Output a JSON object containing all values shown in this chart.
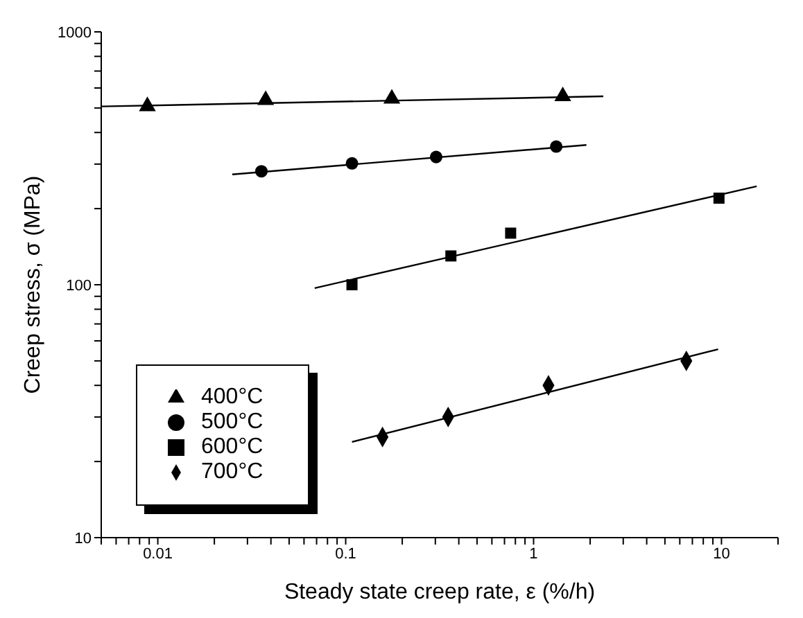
{
  "chart_data": {
    "type": "scatter",
    "xlabel": "Steady state creep rate, ε  (%/h)",
    "ylabel": "Creep stress,  σ (MPa)",
    "log": "xy",
    "xlim": [
      0.005,
      20
    ],
    "ylim": [
      10,
      1000
    ],
    "xticks": [
      {
        "value": 0.005,
        "label": null
      },
      {
        "value": 0.006,
        "label": null
      },
      {
        "value": 0.007,
        "label": null
      },
      {
        "value": 0.008,
        "label": null
      },
      {
        "value": 0.009,
        "label": null
      },
      0.01,
      {
        "value": 0.02,
        "label": null
      },
      {
        "value": 0.03,
        "label": null
      },
      {
        "value": 0.04,
        "label": null
      },
      {
        "value": 0.05,
        "label": null
      },
      {
        "value": 0.06,
        "label": null
      },
      {
        "value": 0.07,
        "label": null
      },
      {
        "value": 0.08,
        "label": null
      },
      {
        "value": 0.09,
        "label": null
      },
      0.1,
      {
        "value": 0.2,
        "label": null
      },
      {
        "value": 0.3,
        "label": null
      },
      {
        "value": 0.4,
        "label": null
      },
      {
        "value": 0.5,
        "label": null
      },
      {
        "value": 0.6,
        "label": null
      },
      {
        "value": 0.7,
        "label": null
      },
      {
        "value": 0.8,
        "label": null
      },
      {
        "value": 0.9,
        "label": null
      },
      1,
      {
        "value": 2,
        "label": null
      },
      {
        "value": 3,
        "label": null
      },
      {
        "value": 4,
        "label": null
      },
      {
        "value": 5,
        "label": null
      },
      {
        "value": 6,
        "label": null
      },
      {
        "value": 7,
        "label": null
      },
      {
        "value": 8,
        "label": null
      },
      {
        "value": 9,
        "label": null
      },
      10,
      {
        "value": 20,
        "label": null
      }
    ],
    "yticks": [
      10,
      {
        "value": 20,
        "label": null
      },
      {
        "value": 30,
        "label": null
      },
      {
        "value": 40,
        "label": null
      },
      {
        "value": 50,
        "label": null
      },
      {
        "value": 60,
        "label": null
      },
      {
        "value": 70,
        "label": null
      },
      {
        "value": 80,
        "label": null
      },
      {
        "value": 90,
        "label": null
      },
      100,
      {
        "value": 200,
        "label": null
      },
      {
        "value": 300,
        "label": null
      },
      {
        "value": 400,
        "label": null
      },
      {
        "value": 500,
        "label": null
      },
      {
        "value": 600,
        "label": null
      },
      {
        "value": 700,
        "label": null
      },
      {
        "value": 800,
        "label": null
      },
      {
        "value": 900,
        "label": null
      },
      1000
    ],
    "legend": "bottom left",
    "grid": false,
    "series": [
      {
        "name": "400°C",
        "color": "#000000",
        "marker": "triangle",
        "x": [
          0.0088,
          0.0375,
          0.176,
          1.43
        ],
        "values": [
          508,
          537,
          544,
          556
        ]
      },
      {
        "name": "500°C",
        "color": "#000000",
        "marker": "circle",
        "x": [
          0.0356,
          0.108,
          0.303,
          1.32
        ],
        "values": [
          281,
          302,
          320,
          352
        ]
      },
      {
        "name": "600°C",
        "color": "#000000",
        "marker": "square",
        "x": [
          0.108,
          0.363,
          0.755,
          9.7
        ],
        "values": [
          100,
          130,
          160,
          220
        ]
      },
      {
        "name": "700°C",
        "color": "#000000",
        "marker": "diamond",
        "x": [
          0.157,
          0.351,
          1.2,
          6.5
        ],
        "values": [
          25,
          30,
          40,
          50
        ]
      },
      {
        "type": "line",
        "color": "#000000",
        "marker": "none",
        "x": [
          0.005,
          2.35
        ],
        "values": [
          507,
          556
        ]
      },
      {
        "type": "line",
        "color": "#000000",
        "marker": "none",
        "x": [
          0.0249,
          1.91
        ],
        "values": [
          273,
          357
        ]
      },
      {
        "type": "line",
        "color": "#000000",
        "marker": "none",
        "x": [
          0.0684,
          15.4
        ],
        "values": [
          97,
          245
        ]
      },
      {
        "type": "line",
        "color": "#000000",
        "marker": "none",
        "x": [
          0.108,
          9.6
        ],
        "values": [
          23.9,
          55.6
        ]
      }
    ]
  }
}
